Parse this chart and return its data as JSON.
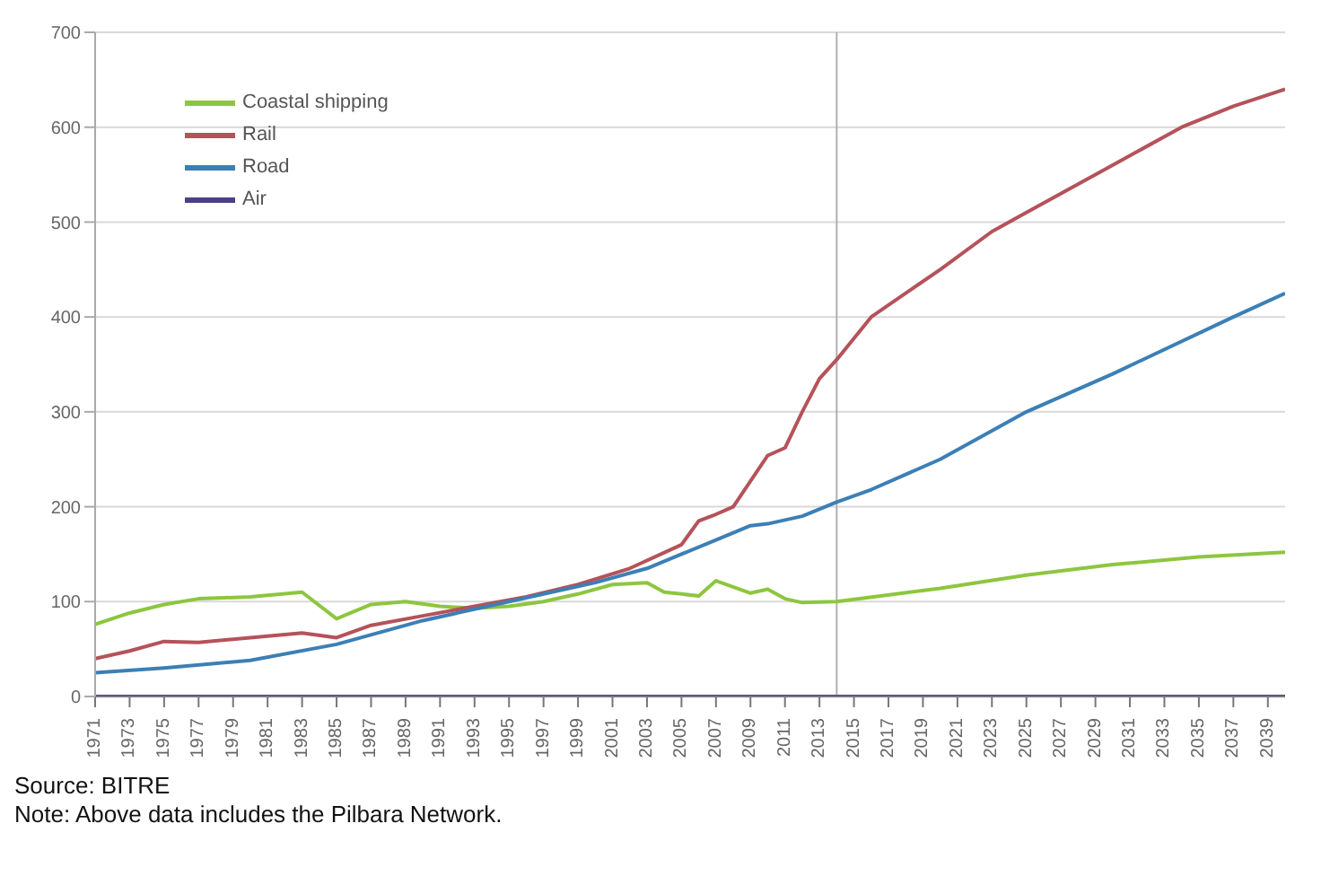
{
  "chart_data": {
    "type": "line",
    "xlim": [
      1971,
      2040
    ],
    "xticks": [
      1971,
      1973,
      1975,
      1977,
      1979,
      1981,
      1983,
      1985,
      1987,
      1989,
      1991,
      1993,
      1995,
      1997,
      1999,
      2001,
      2003,
      2005,
      2007,
      2009,
      2011,
      2013,
      2015,
      2017,
      2019,
      2021,
      2023,
      2025,
      2027,
      2029,
      2031,
      2033,
      2035,
      2037,
      2039
    ],
    "ylim": [
      0,
      700
    ],
    "yticks": [
      0,
      100,
      200,
      300,
      400,
      500,
      600,
      700
    ],
    "grid": "y",
    "legend": "top left",
    "marker": "none",
    "ref_lines": [
      {
        "axis": "x",
        "value": 2014,
        "color": "#b0b0b0"
      }
    ],
    "series": [
      {
        "name": "Coastal shipping",
        "color": "#8dc63f",
        "x": [
          1971,
          1973,
          1975,
          1977,
          1980,
          1983,
          1985,
          1987,
          1989,
          1991,
          1993,
          1995,
          1997,
          1999,
          2001,
          2003,
          2004,
          2006,
          2007,
          2009,
          2010,
          2011,
          2012,
          2014,
          2020,
          2025,
          2030,
          2035,
          2040
        ],
        "values": [
          76,
          88,
          97,
          103,
          105,
          110,
          82,
          97,
          100,
          95,
          93,
          95,
          100,
          108,
          118,
          120,
          110,
          106,
          122,
          109,
          113,
          103,
          99,
          100,
          114,
          128,
          139,
          147,
          152
        ]
      },
      {
        "name": "Rail",
        "color": "#b5525a",
        "x": [
          1971,
          1973,
          1975,
          1977,
          1980,
          1983,
          1985,
          1987,
          1990,
          1993,
          1996,
          1999,
          2002,
          2005,
          2006,
          2007,
          2008,
          2010,
          2011,
          2012,
          2013,
          2014,
          2016,
          2020,
          2023,
          2025,
          2030,
          2034,
          2037,
          2040
        ],
        "values": [
          40,
          48,
          58,
          57,
          62,
          67,
          62,
          75,
          85,
          95,
          105,
          118,
          135,
          160,
          185,
          192,
          200,
          254,
          262,
          300,
          335,
          355,
          400,
          450,
          490,
          510,
          560,
          600,
          622,
          640
        ]
      },
      {
        "name": "Road",
        "color": "#3c7fb6",
        "x": [
          1971,
          1975,
          1980,
          1985,
          1990,
          1995,
          2000,
          2003,
          2005,
          2007,
          2009,
          2010,
          2012,
          2014,
          2016,
          2020,
          2025,
          2030,
          2037,
          2040
        ],
        "values": [
          25,
          30,
          38,
          55,
          80,
          100,
          120,
          135,
          150,
          165,
          180,
          182,
          190,
          205,
          218,
          250,
          300,
          340,
          400,
          425
        ]
      },
      {
        "name": "Air",
        "color": "#4b3f8a",
        "x": [
          1971,
          2040
        ],
        "values": [
          0,
          0
        ]
      }
    ],
    "annotations": [
      "Source: BITRE",
      "Note: Above data includes the Pilbara Network."
    ]
  }
}
